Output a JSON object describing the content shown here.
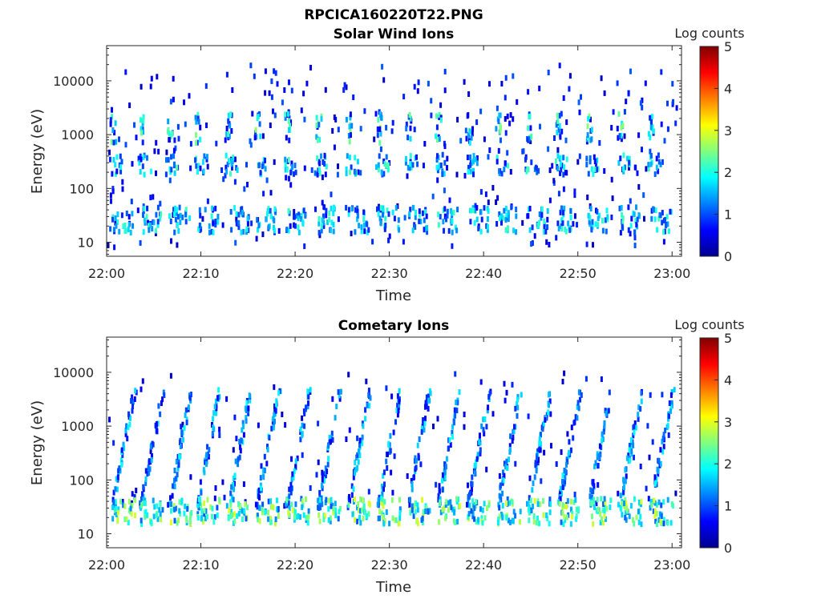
{
  "figure": {
    "title": "RPCICA160220T22.PNG"
  },
  "chart_data": [
    {
      "type": "heatmap",
      "title": "Solar Wind Ions",
      "xlabel": "Time",
      "ylabel": "Energy (eV)",
      "x_ticks": [
        "22:00",
        "22:10",
        "22:20",
        "22:30",
        "22:40",
        "22:50",
        "23:00"
      ],
      "xlim_minutes": [
        0,
        61
      ],
      "yscale": "log",
      "ylim": [
        5.5,
        45000
      ],
      "y_ticks": [
        {
          "value": 10,
          "label": "10"
        },
        {
          "value": 100,
          "label": "100"
        },
        {
          "value": 1000,
          "label": "1000"
        },
        {
          "value": 10000,
          "label": "10000"
        }
      ],
      "colorbar": {
        "label": "Log counts",
        "range": [
          0,
          5
        ],
        "ticks": [
          "0",
          "1",
          "2",
          "3",
          "4",
          "5"
        ],
        "colormap": "jet"
      },
      "features": [
        {
          "name": "low-energy",
          "energy_band_eV": [
            15,
            45
          ],
          "peak_log_counts": 2.2
        },
        {
          "name": "mid-energy",
          "energy_band_eV": [
            180,
            420
          ],
          "peak_log_counts": 2.3
        },
        {
          "name": "high-energy",
          "energy_band_eV": [
            700,
            2500
          ],
          "peak_log_counts": 2.6
        }
      ],
      "bursts_start_minutes": [
        0.5,
        3.5,
        6.5,
        9.5,
        12.8,
        15.8,
        19,
        22.3,
        25.5,
        28.7,
        31.8,
        35,
        38.2,
        41.4,
        44.6,
        47.8,
        51,
        54.3,
        57.6
      ],
      "legend": "none"
    },
    {
      "type": "heatmap",
      "title": "Cometary Ions",
      "xlabel": "Time",
      "ylabel": "Energy (eV)",
      "x_ticks": [
        "22:00",
        "22:10",
        "22:20",
        "22:30",
        "22:40",
        "22:50",
        "23:00"
      ],
      "xlim_minutes": [
        0,
        61
      ],
      "yscale": "log",
      "ylim": [
        5.5,
        45000
      ],
      "y_ticks": [
        {
          "value": 10,
          "label": "10"
        },
        {
          "value": 100,
          "label": "100"
        },
        {
          "value": 1000,
          "label": "1000"
        },
        {
          "value": 10000,
          "label": "10000"
        }
      ],
      "colorbar": {
        "label": "Log counts",
        "range": [
          0,
          5
        ],
        "ticks": [
          "0",
          "1",
          "2",
          "3",
          "4",
          "5"
        ],
        "colormap": "jet"
      },
      "features": [
        {
          "name": "dispersed-rise",
          "energy_band_eV": [
            30,
            5000
          ],
          "peak_log_counts": 2.8
        },
        {
          "name": "low-energy-core",
          "energy_band_eV": [
            15,
            45
          ],
          "peak_log_counts": 3.0
        }
      ],
      "bursts_start_minutes": [
        0.5,
        3.5,
        6.5,
        9.5,
        12.8,
        15.8,
        19,
        22.3,
        25.5,
        28.7,
        31.8,
        35,
        38.2,
        41.4,
        44.6,
        47.8,
        51,
        54.3,
        57.6
      ],
      "legend": "none"
    }
  ]
}
